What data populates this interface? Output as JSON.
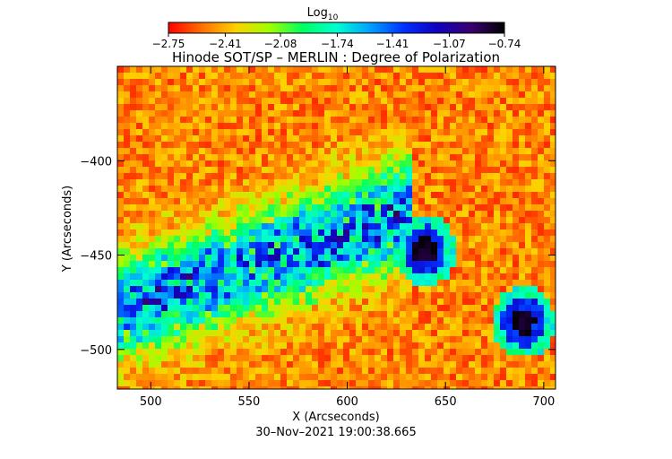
{
  "chart_data": {
    "type": "heatmap",
    "title": "Hinode SOT/SP – MERLIN : Degree of Polarization",
    "xlabel": "X (Arcseconds)",
    "ylabel": "Y (Arcseconds)",
    "timestamp": "30–Nov–2021 19:00:38.665",
    "xlim": [
      483,
      706
    ],
    "ylim": [
      -521,
      -350
    ],
    "x_ticks": [
      500,
      550,
      600,
      650,
      700
    ],
    "x_tick_labels": [
      "500",
      "550",
      "600",
      "650",
      "700"
    ],
    "y_ticks": [
      -400,
      -450,
      -500
    ],
    "y_tick_labels": [
      "−400",
      "−450",
      "−500"
    ],
    "colorbar": {
      "label": "Log",
      "label_sub": "10",
      "range": [
        -2.75,
        -0.74
      ],
      "ticks": [
        -2.75,
        -2.41,
        -2.08,
        -1.74,
        -1.41,
        -1.07,
        -0.74
      ],
      "tick_labels": [
        "−2.75",
        "−2.41",
        "−2.08",
        "−1.74",
        "−1.41",
        "−1.07",
        "−0.74"
      ],
      "colormap": [
        "#ff0000",
        "#ff7000",
        "#ffd000",
        "#a0ff00",
        "#00ff60",
        "#00ffd0",
        "#00a0ff",
        "#0030ff",
        "#1000c0",
        "#3a0070",
        "#000000"
      ]
    },
    "features": [
      {
        "name": "sunspot-1",
        "x": 638,
        "y": -446,
        "umbra_value": -0.8,
        "penumbra_value": -1.3
      },
      {
        "name": "sunspot-2",
        "x": 688,
        "y": -484,
        "umbra_value": -0.8,
        "penumbra_value": -1.3
      },
      {
        "name": "plage-region",
        "x_range": [
          500,
          620
        ],
        "y_range": [
          -480,
          -420
        ],
        "value": -1.6
      }
    ],
    "background_value": -2.5
  }
}
